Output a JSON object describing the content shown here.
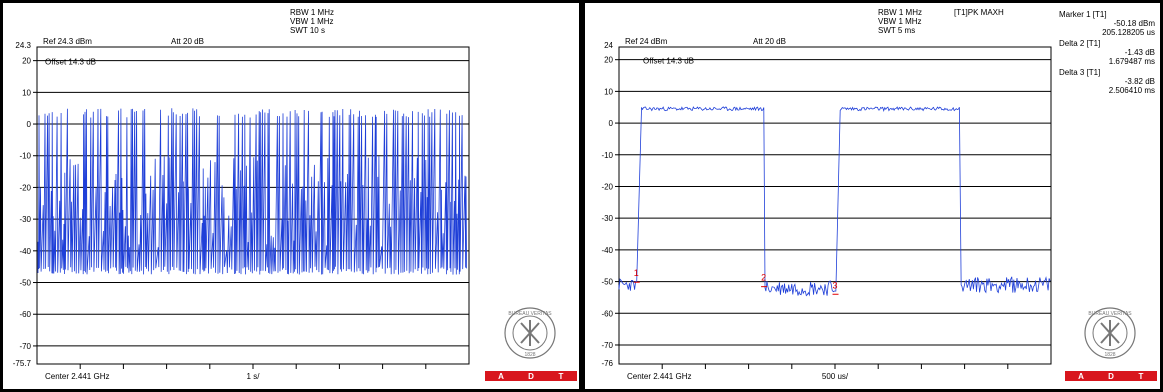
{
  "left": {
    "rbw": "RBW 1 MHz",
    "vbw": "VBW 1 MHz",
    "swt": "SWT 10 s",
    "ref": "Ref 24.3 dBm",
    "att": "Att  20 dB",
    "offset": "Offset 14.3 dB",
    "ref_level_label": "24.3",
    "bottom_level_label": "-75.7",
    "center": "Center 2.441 GHz",
    "span": "1 s/"
  },
  "right": {
    "rbw": "RBW 1 MHz",
    "vbw": "VBW 1 MHz",
    "swt": "SWT 5 ms",
    "trace_mode": "[T1]PK MAXH",
    "ref": "Ref 24 dBm",
    "att": "Att  20 dB",
    "offset": "Offset 14.3 dB",
    "ref_level_label": "24",
    "bottom_level_label": "-76",
    "center": "Center 2.441 GHz",
    "span": "500 us/",
    "markers": [
      {
        "label": "Marker 1 [T1]",
        "value": "-50.18 dBm",
        "time": "205.128205 us",
        "num": "1"
      },
      {
        "label": "Delta 2 [T1]",
        "value": "-1.43 dB",
        "time": "1.679487 ms",
        "num": "2"
      },
      {
        "label": "Delta 3 [T1]",
        "value": "-3.82 dB",
        "time": "2.506410 ms",
        "num": "3"
      }
    ]
  },
  "logo": {
    "brand": "BUREAU VERITAS",
    "year": "1828",
    "band": [
      "A",
      "D",
      "T"
    ],
    "band_color": "#d8161d"
  },
  "chart_data": [
    {
      "type": "line",
      "title": "",
      "xlabel": "Center 2.441 GHz",
      "x_division": "1 s/",
      "ylabel": "",
      "ylim": [
        -75.7,
        24.3
      ],
      "y_ticks": [
        20,
        10,
        0,
        -10,
        -20,
        -30,
        -40,
        -50,
        -60,
        -70
      ],
      "x_divisions": 10,
      "grid": true,
      "series": [
        {
          "color": "#1f3fd8",
          "description_points": "dense random hopping bursts between about -47 and 5 dBm",
          "values": [
            -47,
            5,
            -47,
            5,
            -47,
            5,
            -47,
            5,
            -47,
            5
          ]
        }
      ]
    },
    {
      "type": "line",
      "title": "",
      "xlabel": "Center 2.441 GHz",
      "x_division": "500 us/",
      "ylabel": "",
      "ylim": [
        -76,
        24
      ],
      "y_ticks": [
        20,
        10,
        0,
        -10,
        -20,
        -30,
        -40,
        -50,
        -60,
        -70
      ],
      "x_divisions": 10,
      "grid": true,
      "series": [
        {
          "color": "#1f3fd8",
          "x": [
            0,
            0.205,
            0.26,
            1.68,
            1.74,
            2.5,
            2.56,
            3.95,
            4.01,
            5.0
          ],
          "values": [
            -51,
            -50,
            4,
            4,
            -52,
            -53,
            4,
            4,
            -51,
            -51
          ]
        }
      ]
    }
  ]
}
